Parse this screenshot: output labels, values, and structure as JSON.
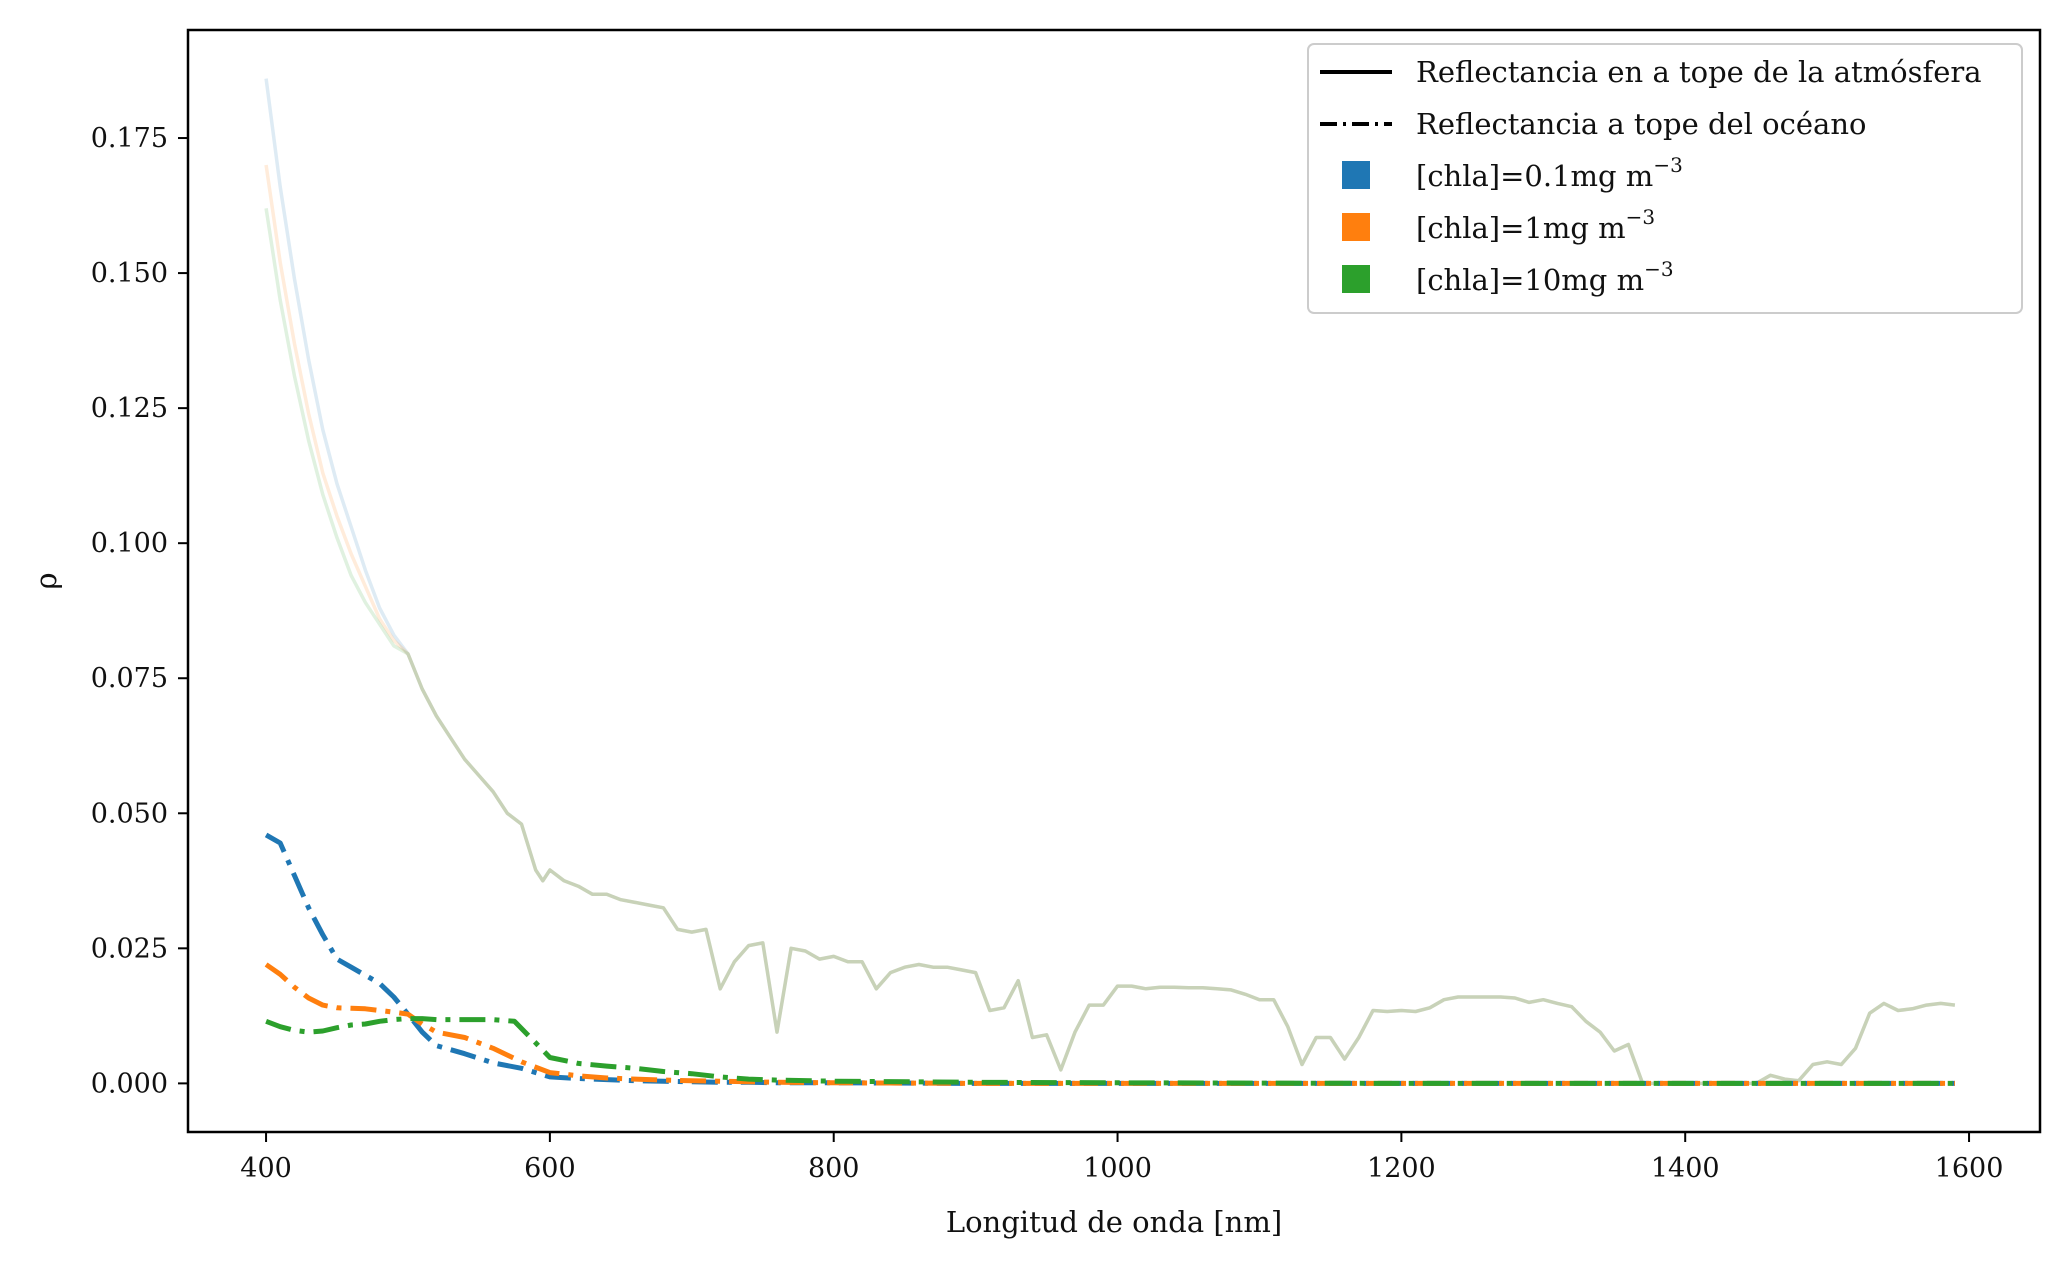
{
  "chart_data": {
    "type": "line",
    "title": "",
    "xlabel": "Longitud de onda [nm]",
    "ylabel": "ρ",
    "xlim": [
      345,
      1650
    ],
    "ylim": [
      -0.009,
      0.195
    ],
    "xticks": [
      400,
      600,
      800,
      1000,
      1200,
      1400,
      1600
    ],
    "xtick_labels": [
      "400",
      "600",
      "800",
      "1000",
      "1200",
      "1400",
      "1600"
    ],
    "yticks": [
      0.0,
      0.025,
      0.05,
      0.075,
      0.1,
      0.125,
      0.15,
      0.175
    ],
    "ytick_labels": [
      "0.000",
      "0.025",
      "0.050",
      "0.075",
      "0.100",
      "0.125",
      "0.150",
      "0.175"
    ],
    "grid": false,
    "legend_position": "top-right",
    "legend": {
      "style_entries": [
        {
          "label": "Reflectancia en a tope de la atmósfera",
          "linestyle": "solid"
        },
        {
          "label": "Reflectancia a tope del océano",
          "linestyle": "dashdot"
        }
      ],
      "color_entries": [
        {
          "label": "[chla]=0.1mg m",
          "sup": "−3",
          "color": "#1f77b4"
        },
        {
          "label": "[chla]=1mg m",
          "sup": "−3",
          "color": "#ff7f0e"
        },
        {
          "label": "[chla]=10mg m",
          "sup": "−3",
          "color": "#2ca02c"
        }
      ]
    },
    "toa_x": [
      400,
      410,
      420,
      430,
      440,
      450,
      460,
      470,
      480,
      490,
      500,
      510,
      520,
      530,
      540,
      550,
      560,
      570,
      580,
      590,
      595,
      600,
      610,
      620,
      630,
      640,
      650,
      660,
      670,
      680,
      690,
      700,
      710,
      720,
      730,
      740,
      750,
      760,
      770,
      780,
      790,
      800,
      810,
      820,
      830,
      840,
      850,
      860,
      870,
      880,
      890,
      900,
      910,
      920,
      930,
      940,
      950,
      960,
      970,
      980,
      990,
      1000,
      1010,
      1020,
      1030,
      1040,
      1050,
      1060,
      1070,
      1080,
      1090,
      1100,
      1110,
      1120,
      1130,
      1140,
      1150,
      1160,
      1170,
      1180,
      1190,
      1200,
      1210,
      1220,
      1230,
      1240,
      1250,
      1260,
      1270,
      1280,
      1290,
      1300,
      1310,
      1320,
      1330,
      1340,
      1350,
      1360,
      1370,
      1380,
      1390,
      1400,
      1410,
      1420,
      1430,
      1440,
      1450,
      1460,
      1470,
      1480,
      1490,
      1500,
      1510,
      1520,
      1530,
      1540,
      1550,
      1560,
      1570,
      1580,
      1590
    ],
    "toa_common": [
      null,
      null,
      null,
      null,
      null,
      null,
      null,
      null,
      null,
      null,
      0.0795,
      0.073,
      0.068,
      0.064,
      0.06,
      0.057,
      0.054,
      0.05,
      0.048,
      0.0395,
      0.0375,
      0.0395,
      0.0375,
      0.0365,
      0.035,
      0.035,
      0.034,
      0.0335,
      0.033,
      0.0325,
      0.0285,
      0.028,
      0.0285,
      0.0175,
      0.0225,
      0.0255,
      0.026,
      0.0095,
      0.025,
      0.0245,
      0.023,
      0.0235,
      0.0225,
      0.0225,
      0.0175,
      0.0205,
      0.0215,
      0.022,
      0.0215,
      0.0215,
      0.021,
      0.0205,
      0.0135,
      0.014,
      0.019,
      0.0085,
      0.009,
      0.0025,
      0.0095,
      0.0145,
      0.0145,
      0.018,
      0.018,
      0.0175,
      0.0178,
      0.0178,
      0.0177,
      0.0177,
      0.0175,
      0.0173,
      0.0165,
      0.0155,
      0.0155,
      0.0105,
      0.0035,
      0.0085,
      0.0085,
      0.0045,
      0.0085,
      0.0135,
      0.0133,
      0.0135,
      0.0133,
      0.014,
      0.0155,
      0.016,
      0.016,
      0.016,
      0.016,
      0.0158,
      0.015,
      0.0155,
      0.0148,
      0.0142,
      0.0115,
      0.0095,
      0.006,
      0.0072,
      0.0,
      0.0,
      0.0,
      0.0,
      0.0,
      0.0,
      0.0,
      0.0,
      0.0,
      0.0015,
      0.0008,
      0.0005,
      0.0035,
      0.004,
      0.0035,
      0.0065,
      0.013,
      0.0148,
      0.0135,
      0.0138,
      0.0145,
      0.0148,
      0.0145,
      0.0135,
      0.014,
      0.0145
    ],
    "toa_start": [
      [
        0.186,
        0.166,
        0.149,
        0.134,
        0.121,
        0.111,
        0.103,
        0.095,
        0.088,
        0.083
      ],
      [
        0.17,
        0.152,
        0.137,
        0.124,
        0.113,
        0.105,
        0.098,
        0.092,
        0.086,
        0.082
      ],
      [
        0.162,
        0.145,
        0.131,
        0.119,
        0.109,
        0.101,
        0.094,
        0.089,
        0.085,
        0.081
      ]
    ],
    "series": [
      {
        "name": "[chla]=0.1mg m−3",
        "color": "#1f77b4",
        "x": [
          400,
          410,
          420,
          430,
          440,
          450,
          460,
          470,
          480,
          490,
          500,
          510,
          520,
          540,
          560,
          580,
          600,
          620,
          640,
          660,
          680,
          700,
          720,
          740,
          760,
          800,
          900,
          1000,
          1200,
          1400,
          1590
        ],
        "toc": [
          0.046,
          0.0445,
          0.0385,
          0.0325,
          0.0275,
          0.023,
          0.0215,
          0.02,
          0.0185,
          0.016,
          0.0128,
          0.0095,
          0.007,
          0.0055,
          0.0038,
          0.0028,
          0.0012,
          0.0009,
          0.0007,
          0.0005,
          0.0004,
          0.0003,
          0.0002,
          0.0002,
          0.0001,
          0.0001,
          0.0,
          0.0,
          0.0,
          0.0,
          0.0
        ]
      },
      {
        "name": "[chla]=1mg m−3",
        "color": "#ff7f0e",
        "x": [
          400,
          410,
          420,
          430,
          440,
          450,
          460,
          470,
          480,
          490,
          500,
          510,
          520,
          540,
          560,
          580,
          600,
          620,
          640,
          660,
          680,
          700,
          720,
          740,
          760,
          800,
          900,
          1000,
          1200,
          1400,
          1590
        ],
        "toc": [
          0.022,
          0.0202,
          0.0178,
          0.0158,
          0.0145,
          0.014,
          0.0139,
          0.0138,
          0.0135,
          0.0132,
          0.0128,
          0.011,
          0.0095,
          0.0085,
          0.0065,
          0.004,
          0.002,
          0.0014,
          0.001,
          0.0008,
          0.0006,
          0.0005,
          0.0004,
          0.0003,
          0.0002,
          0.0001,
          0.0,
          0.0,
          0.0,
          0.0,
          0.0
        ]
      },
      {
        "name": "[chla]=10mg m−3",
        "color": "#2ca02c",
        "x": [
          400,
          410,
          420,
          430,
          440,
          450,
          460,
          470,
          480,
          490,
          500,
          510,
          520,
          540,
          560,
          575,
          590,
          600,
          620,
          640,
          660,
          680,
          700,
          720,
          740,
          760,
          800,
          900,
          1000,
          1200,
          1400,
          1590
        ],
        "toc": [
          0.0115,
          0.0105,
          0.0098,
          0.0095,
          0.0097,
          0.0103,
          0.0108,
          0.011,
          0.0115,
          0.0118,
          0.012,
          0.012,
          0.0118,
          0.0118,
          0.0118,
          0.0115,
          0.0075,
          0.0048,
          0.0037,
          0.0032,
          0.0028,
          0.0022,
          0.0018,
          0.0012,
          0.0008,
          0.0006,
          0.0004,
          0.0002,
          0.0001,
          0.0,
          0.0,
          0.0
        ]
      }
    ]
  }
}
